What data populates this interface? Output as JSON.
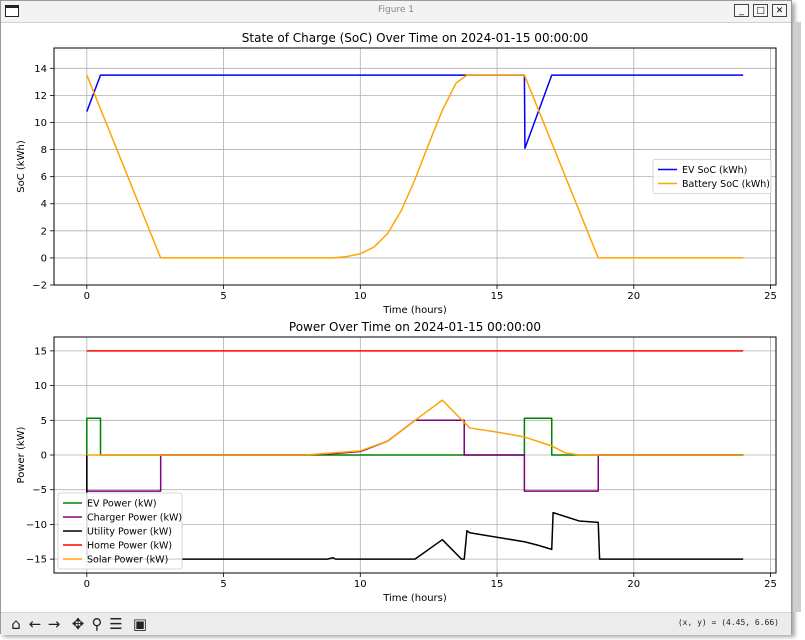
{
  "window": {
    "title": "Figure 1"
  },
  "toolbar": {
    "buttons": [
      {
        "name": "home-icon",
        "glyph": "⌂"
      },
      {
        "name": "back-arrow-icon",
        "glyph": "←"
      },
      {
        "name": "forward-arrow-icon",
        "glyph": "→"
      },
      {
        "name": "pan-icon",
        "glyph": "✥"
      },
      {
        "name": "zoom-icon",
        "glyph": "⚲"
      },
      {
        "name": "configure-subplots-icon",
        "glyph": "☰"
      },
      {
        "name": "save-icon",
        "glyph": "▣"
      }
    ],
    "coords_text": "(x, y) = (4.45, 6.66)"
  },
  "chart_data": [
    {
      "type": "line",
      "title": "State of Charge (SoC) Over Time on 2024-01-15 00:00:00",
      "xlabel": "Time (hours)",
      "ylabel": "SoC (kWh)",
      "xlim": [
        -1.2,
        25.2
      ],
      "ylim": [
        -2,
        15.5
      ],
      "xticks": [
        0,
        5,
        10,
        15,
        20,
        25
      ],
      "yticks": [
        -2,
        0,
        2,
        4,
        6,
        8,
        10,
        12,
        14
      ],
      "grid": true,
      "legend": "center-right",
      "series": [
        {
          "name": "EV SoC (kWh)",
          "color": "#0000ff",
          "x": [
            0,
            0.5,
            16,
            16.02,
            17,
            24
          ],
          "y": [
            10.8,
            13.5,
            13.5,
            8.1,
            13.5,
            13.5
          ]
        },
        {
          "name": "Battery SoC (kWh)",
          "color": "#ffa500",
          "x": [
            0,
            2.7,
            9,
            9.5,
            10,
            10.5,
            11,
            11.5,
            12,
            12.5,
            13,
            13.5,
            13.9,
            16,
            18.7,
            24
          ],
          "y": [
            13.5,
            0,
            0,
            0.1,
            0.3,
            0.8,
            1.8,
            3.5,
            5.8,
            8.4,
            10.9,
            12.9,
            13.5,
            13.5,
            0,
            0
          ]
        }
      ]
    },
    {
      "type": "line",
      "title": "Power Over Time on 2024-01-15 00:00:00",
      "xlabel": "Time (hours)",
      "ylabel": "Power (kW)",
      "xlim": [
        -1.2,
        25.2
      ],
      "ylim": [
        -17,
        17
      ],
      "xticks": [
        0,
        5,
        10,
        15,
        20,
        25
      ],
      "yticks": [
        -15,
        -10,
        -5,
        0,
        5,
        10,
        15
      ],
      "grid": true,
      "legend": "lower-left",
      "series": [
        {
          "name": "EV Power (kW)",
          "color": "#008000",
          "x": [
            0,
            0,
            0.5,
            0.5,
            16,
            16,
            17,
            17,
            24
          ],
          "y": [
            0,
            5.3,
            5.3,
            0,
            0,
            5.3,
            5.3,
            0,
            0
          ]
        },
        {
          "name": "Charger Power (kW)",
          "color": "#800080",
          "x": [
            0,
            0,
            2.7,
            2.7,
            8,
            9,
            10,
            11,
            12,
            13,
            13.8,
            13.8,
            16,
            16,
            18.7,
            18.7,
            24
          ],
          "y": [
            0,
            -5.2,
            -5.2,
            0,
            0,
            0.2,
            0.5,
            2,
            5,
            5,
            5,
            0,
            0,
            -5.2,
            -5.2,
            0,
            0
          ]
        },
        {
          "name": "Utility Power (kW)",
          "color": "#000000",
          "x": [
            0,
            0,
            0.05,
            8.8,
            9,
            9.1,
            12,
            13,
            13.7,
            13.8,
            13.9,
            14,
            16,
            16.5,
            17,
            17.05,
            18,
            18.7,
            18.75,
            24
          ],
          "y": [
            0,
            -14,
            -15,
            -15,
            -14.8,
            -15,
            -15,
            -12.2,
            -15,
            -15,
            -10.9,
            -11.2,
            -12.5,
            -13,
            -13.6,
            -8.3,
            -9.5,
            -9.7,
            -15,
            -15
          ]
        },
        {
          "name": "Home Power (kW)",
          "color": "#ff0000",
          "x": [
            0,
            24
          ],
          "y": [
            15,
            15
          ]
        },
        {
          "name": "Solar Power (kW)",
          "color": "#ffa500",
          "x": [
            0,
            8,
            9,
            10,
            11,
            12,
            13,
            14,
            15,
            16,
            17,
            17.5,
            18,
            24
          ],
          "y": [
            0,
            0,
            0.3,
            0.6,
            2,
            5,
            7.9,
            3.9,
            3.3,
            2.6,
            1.3,
            0.3,
            0,
            0
          ]
        }
      ]
    }
  ]
}
